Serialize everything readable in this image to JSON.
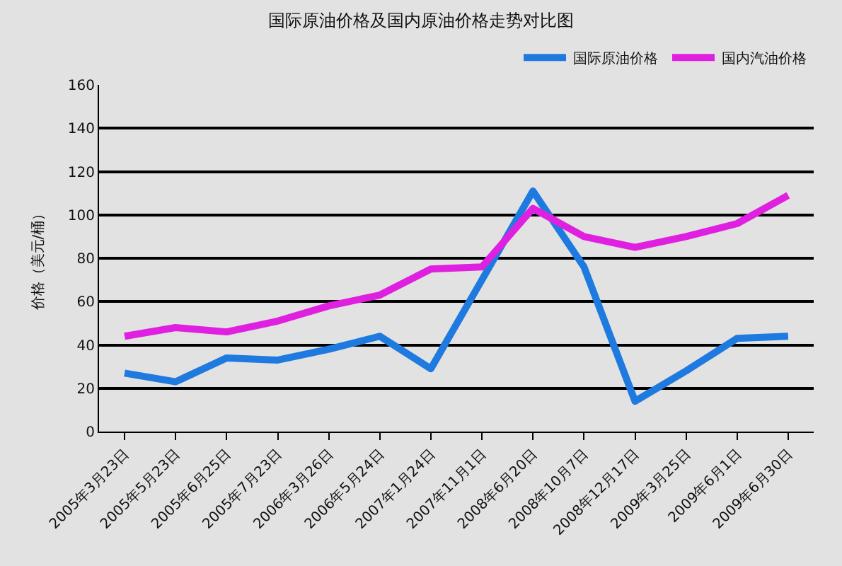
{
  "chart_data": {
    "type": "line",
    "title": "国际原油价格及国内原油价格走势对比图",
    "ylabel": "价格（美元/桶）",
    "categories": [
      "2005年3月23日",
      "2005年5月23日",
      "2005年6月25日",
      "2005年7月23日",
      "2006年3月26日",
      "2006年5月24日",
      "2007年1月24日",
      "2007年11月1日",
      "2008年6月20日",
      "2008年10月7日",
      "2008年12月17日",
      "2009年3月25日",
      "2009年6月1日",
      "2009年6月30日"
    ],
    "series": [
      {
        "name": "国际原油价格",
        "color": "#1f7ae0",
        "values": [
          27,
          23,
          34,
          33,
          38,
          44,
          29,
          70,
          111,
          76,
          14,
          28,
          43,
          44
        ]
      },
      {
        "name": "国内汽油价格",
        "color": "#e020e0",
        "values": [
          44,
          48,
          46,
          51,
          58,
          63,
          75,
          76,
          103,
          90,
          85,
          90,
          96,
          109
        ]
      }
    ],
    "ylim": [
      0,
      160
    ],
    "yticks": [
      0,
      20,
      40,
      60,
      80,
      100,
      120,
      140,
      160
    ],
    "grid": "y",
    "legend": "top right",
    "marker": "none",
    "line_style": "solid"
  }
}
